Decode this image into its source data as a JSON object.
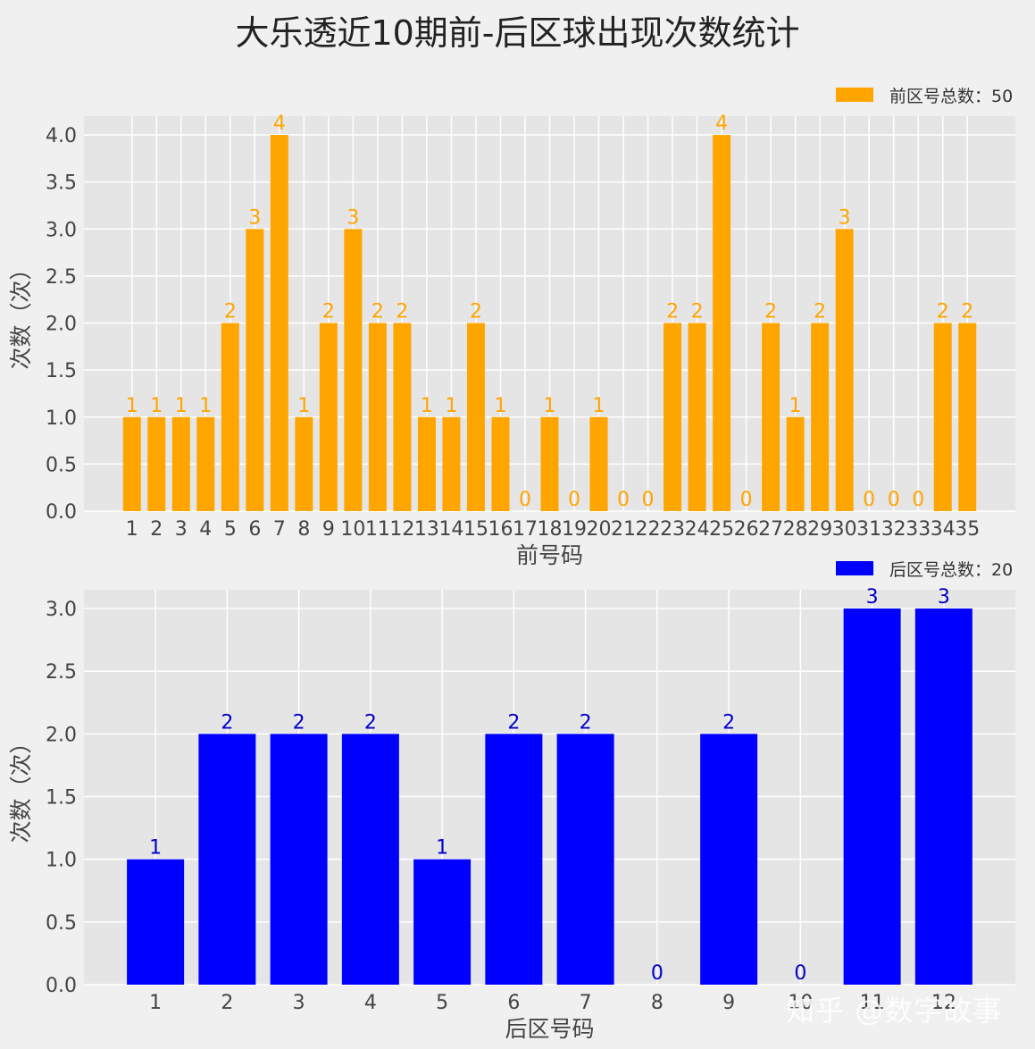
{
  "title": "大乐透近10期前-后区球出现次数统计",
  "watermark": "知乎 @数字故事",
  "chart_data": [
    {
      "type": "bar",
      "categories": [
        "1",
        "2",
        "3",
        "4",
        "5",
        "6",
        "7",
        "8",
        "9",
        "10",
        "11",
        "12",
        "13",
        "14",
        "15",
        "16",
        "17",
        "18",
        "19",
        "20",
        "21",
        "22",
        "23",
        "24",
        "25",
        "26",
        "27",
        "28",
        "29",
        "30",
        "31",
        "32",
        "33",
        "34",
        "35"
      ],
      "values": [
        1,
        1,
        1,
        1,
        2,
        3,
        4,
        1,
        2,
        3,
        2,
        2,
        1,
        1,
        2,
        1,
        0,
        1,
        0,
        1,
        0,
        0,
        2,
        2,
        4,
        0,
        2,
        1,
        2,
        3,
        0,
        0,
        0,
        2,
        2
      ],
      "series_name": "前区号总数：50",
      "color": "#ffa500",
      "xlabel": "前号码",
      "ylabel": "次数（次）",
      "yticks": [
        "0.0",
        "0.5",
        "1.0",
        "1.5",
        "2.0",
        "2.5",
        "3.0",
        "3.5",
        "4.0"
      ],
      "ylim": [
        0,
        4.2
      ],
      "grid": true,
      "legend": "top-right"
    },
    {
      "type": "bar",
      "categories": [
        "1",
        "2",
        "3",
        "4",
        "5",
        "6",
        "7",
        "8",
        "9",
        "10",
        "11",
        "12"
      ],
      "values": [
        1,
        2,
        2,
        2,
        1,
        2,
        2,
        0,
        2,
        0,
        3,
        3
      ],
      "series_name": "后区号总数：20",
      "color": "#0000ff",
      "xlabel": "后区号码",
      "ylabel": "次数（次）",
      "yticks": [
        "0.0",
        "0.5",
        "1.0",
        "1.5",
        "2.0",
        "2.5",
        "3.0"
      ],
      "ylim": [
        0,
        3.15
      ],
      "grid": true,
      "legend": "top-right"
    }
  ]
}
